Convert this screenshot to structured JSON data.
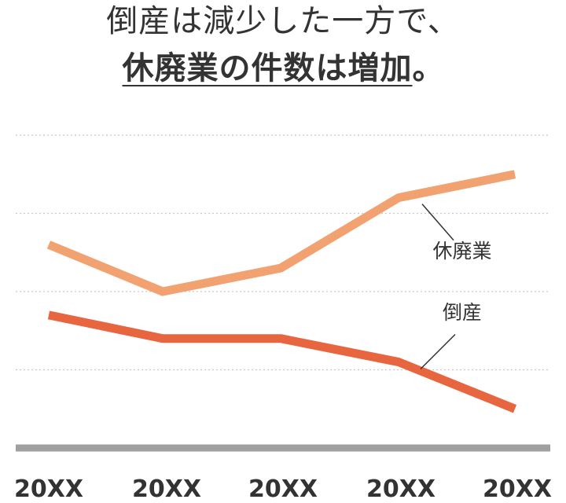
{
  "title": {
    "line1": "倒産は減少した一方で、",
    "line2_emphasis": "休廃業の件数は増加",
    "line2_suffix": "。"
  },
  "chart_data": {
    "type": "line",
    "title": "倒産は減少した一方で、休廃業の件数は増加。",
    "x": [
      "20XX",
      "20XX",
      "20XX",
      "20XX",
      "20XX"
    ],
    "ylim": [
      0,
      4
    ],
    "grid": true,
    "series": [
      {
        "name": "休廃業",
        "values": [
          2.6,
          2.0,
          2.3,
          3.2,
          3.5
        ],
        "color": "#F2A271"
      },
      {
        "name": "倒産",
        "values": [
          1.7,
          1.4,
          1.4,
          1.1,
          0.5
        ],
        "color": "#E8663F"
      }
    ],
    "axis_color": "#A0A0A0",
    "grid_color": "#C8C8C8"
  }
}
